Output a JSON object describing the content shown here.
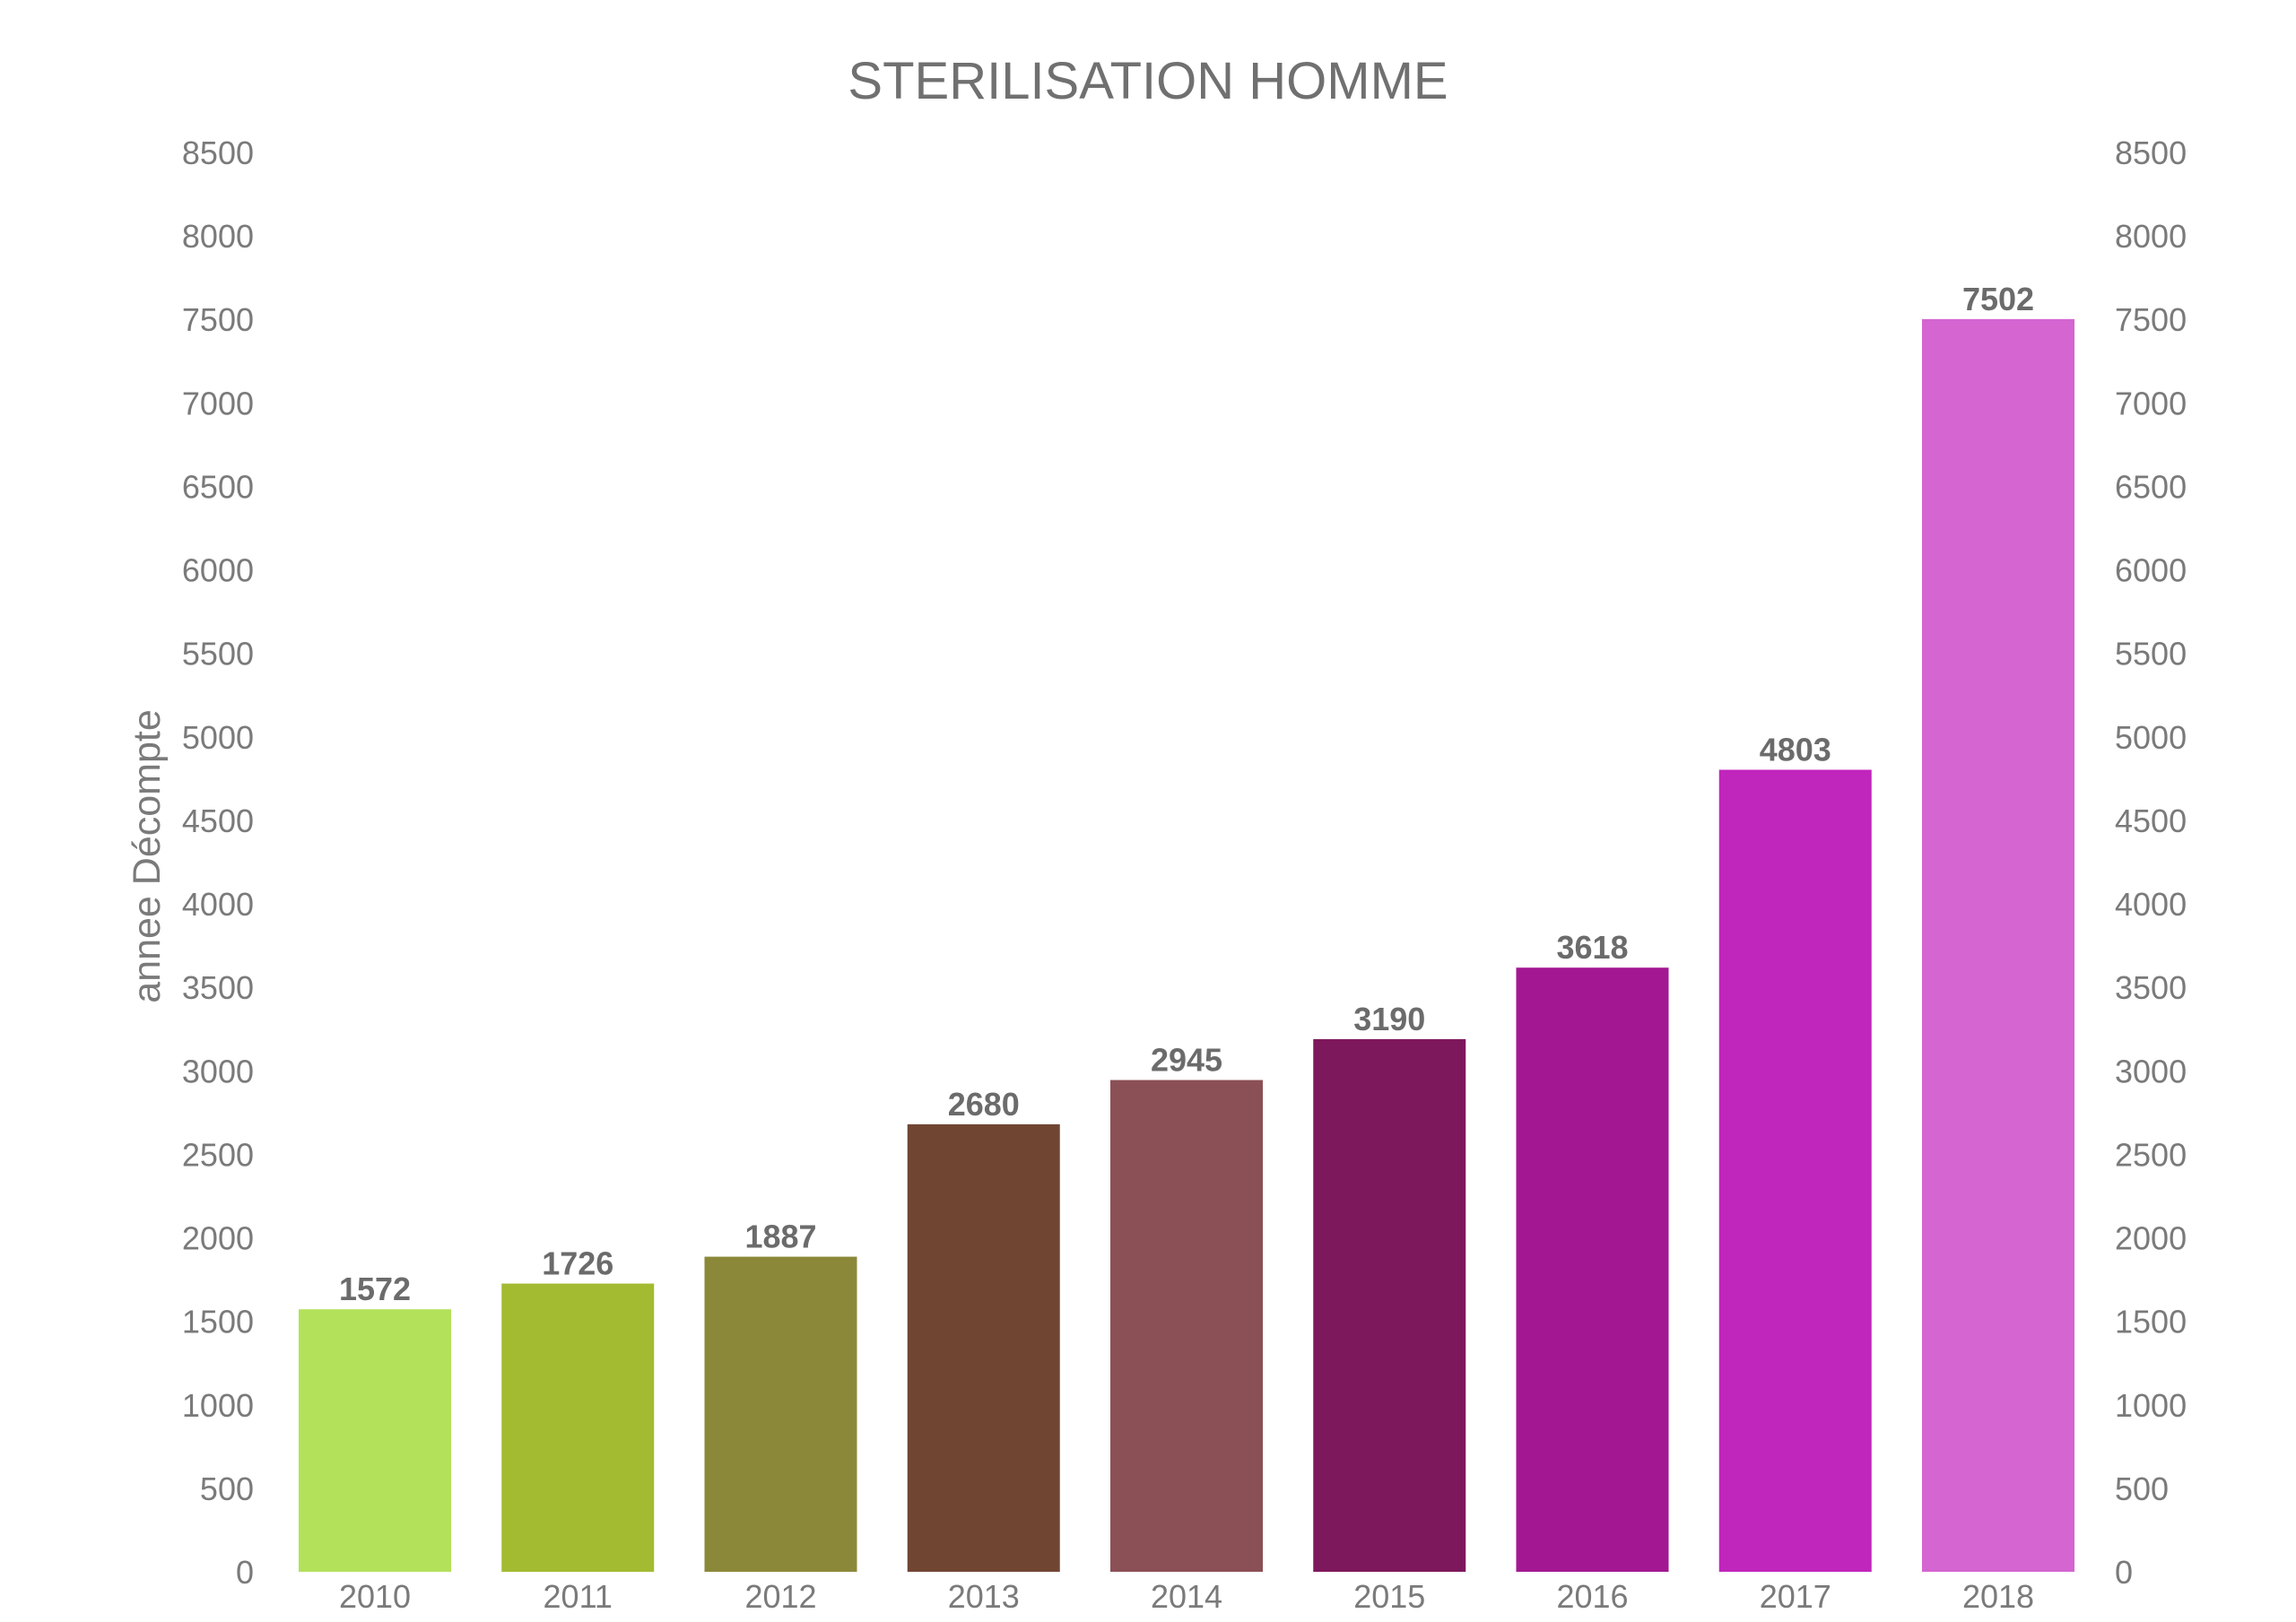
{
  "chart_data": {
    "type": "bar",
    "title": "STERILISATION HOMME",
    "xlabel": "",
    "ylabel": "annee Décompte",
    "categories": [
      "2010",
      "2011",
      "2012",
      "2013",
      "2014",
      "2015",
      "2016",
      "2017",
      "2018"
    ],
    "values": [
      1572,
      1726,
      1887,
      2680,
      2945,
      3190,
      3618,
      4803,
      7502
    ],
    "colors": [
      "#b3e15a",
      "#a2bb31",
      "#8b883a",
      "#704633",
      "#8b5056",
      "#7e185d",
      "#a31892",
      "#c025bc",
      "#d465d1"
    ],
    "ylim": [
      0,
      8500
    ],
    "yticks": [
      0,
      500,
      1000,
      1500,
      2000,
      2500,
      3000,
      3500,
      4000,
      4500,
      5000,
      5500,
      6000,
      6500,
      7000,
      7500,
      8000,
      8500
    ],
    "secondary_y_axis": true,
    "grid": false,
    "legend": "none",
    "data_labels": true
  }
}
